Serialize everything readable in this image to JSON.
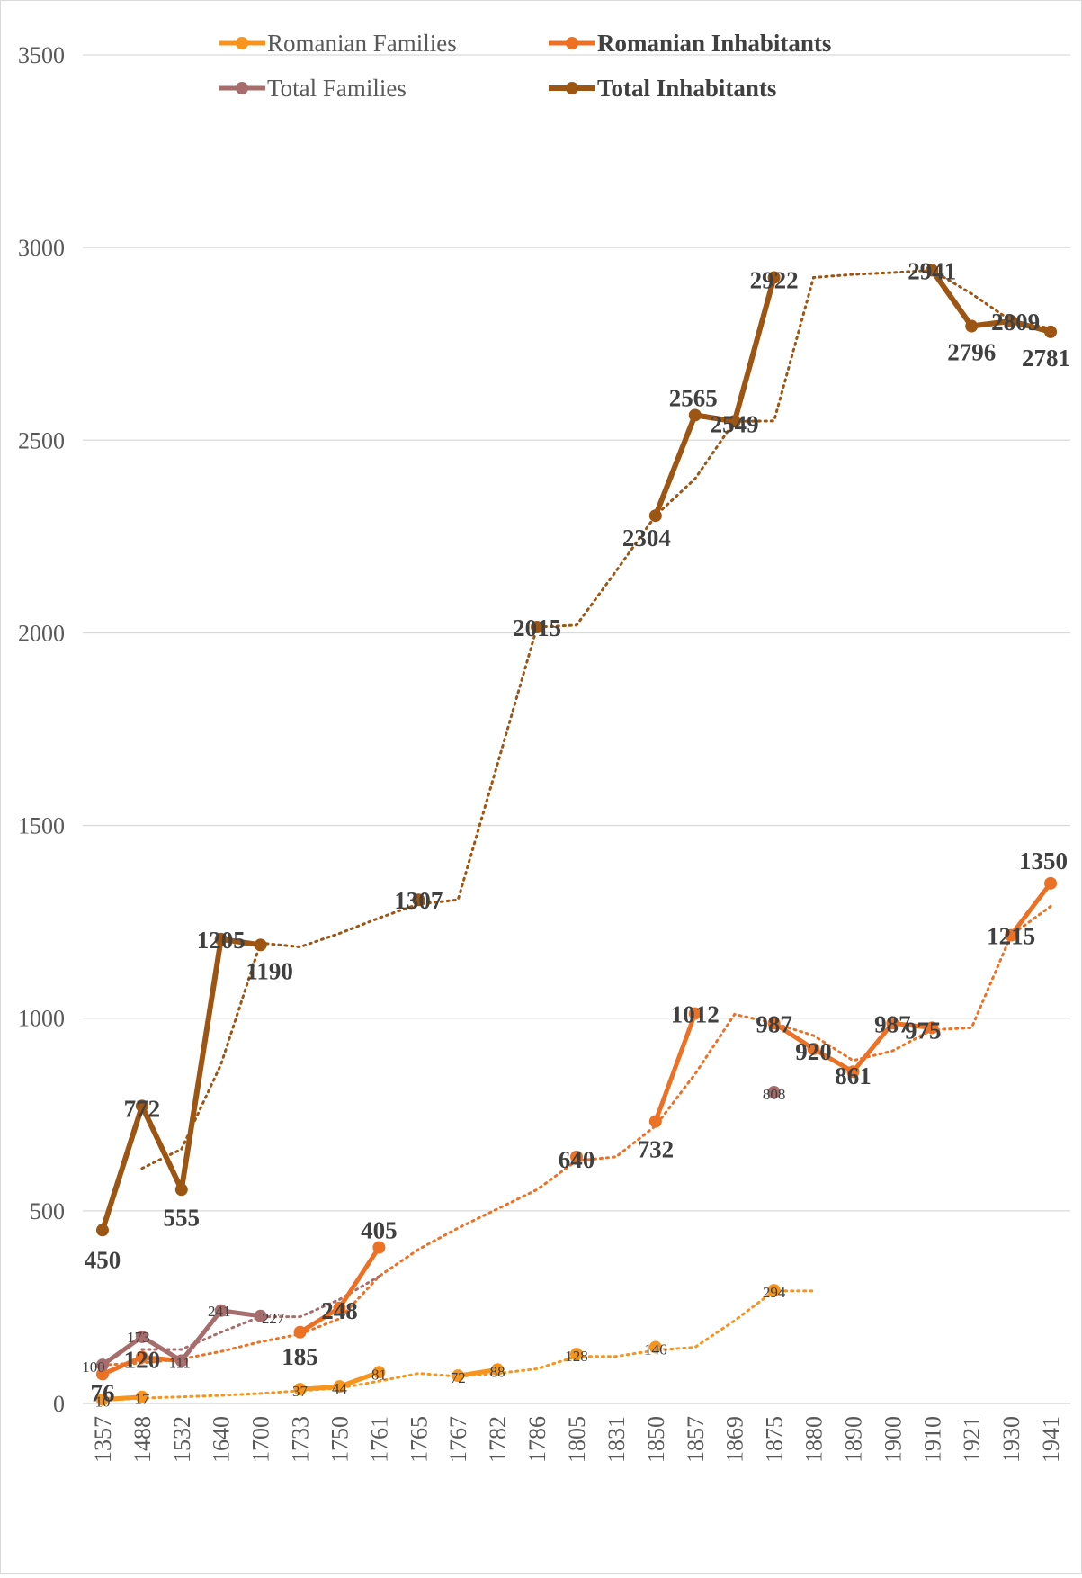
{
  "chart_data": {
    "type": "line",
    "title": "",
    "xlabel": "",
    "ylabel": "",
    "ylim": [
      0,
      3500
    ],
    "yticks": [
      0,
      500,
      1000,
      1500,
      2000,
      2500,
      3000,
      3500
    ],
    "grid": "horizontal",
    "legend_position": "top",
    "categories": [
      "1357",
      "1488",
      "1532",
      "1640",
      "1700",
      "1733",
      "1750",
      "1761",
      "1765",
      "1767",
      "1782",
      "1786",
      "1805",
      "1831",
      "1850",
      "1857",
      "1869",
      "1875",
      "1880",
      "1890",
      "1900",
      "1910",
      "1921",
      "1930",
      "1941"
    ],
    "series": [
      {
        "name": "Romanian Families",
        "color": "#f7941d",
        "line_width": 5,
        "label_style": "small",
        "legend_bold": false,
        "values": [
          10,
          17,
          null,
          null,
          null,
          37,
          44,
          81,
          null,
          72,
          88,
          null,
          128,
          null,
          146,
          null,
          null,
          294,
          null,
          null,
          null,
          null,
          null,
          null,
          null
        ],
        "labels": [
          "10",
          "17",
          null,
          null,
          null,
          "37",
          "44",
          "81",
          null,
          "72",
          "88",
          null,
          "128",
          null,
          "146",
          null,
          null,
          "294",
          null,
          null,
          null,
          null,
          null,
          null,
          null
        ],
        "trend": [
          8,
          14,
          17,
          21,
          26,
          33,
          40,
          58,
          78,
          70,
          78,
          90,
          122,
          122,
          138,
          146,
          215,
          292,
          292,
          null,
          null,
          null,
          null,
          null,
          null
        ]
      },
      {
        "name": "Romanian Inhabitants",
        "color": "#ed7125",
        "line_width": 5,
        "label_style": "big",
        "legend_bold": true,
        "values": [
          76,
          120,
          111,
          null,
          null,
          185,
          248,
          405,
          null,
          null,
          null,
          null,
          640,
          null,
          732,
          1012,
          null,
          987,
          920,
          861,
          987,
          975,
          null,
          1215,
          1350
        ],
        "labels": [
          "76",
          "120",
          null,
          null,
          null,
          "185",
          "248",
          "405",
          null,
          null,
          null,
          null,
          "640",
          null,
          "732",
          "1012",
          null,
          "987",
          "920",
          "861",
          "987",
          "975",
          null,
          "1215",
          "1350"
        ],
        "trend": [
          100,
          105,
          115,
          135,
          160,
          180,
          220,
          330,
          400,
          455,
          505,
          555,
          630,
          640,
          720,
          855,
          1010,
          987,
          955,
          890,
          915,
          970,
          975,
          1215,
          1290
        ]
      },
      {
        "name": "Total Families",
        "color": "#a76d6d",
        "line_width": 5,
        "label_style": "small",
        "legend_bold": false,
        "values": [
          100,
          173,
          111,
          241,
          227,
          null,
          null,
          null,
          null,
          null,
          null,
          null,
          null,
          null,
          null,
          null,
          null,
          808,
          null,
          null,
          null,
          null,
          null,
          null,
          null
        ],
        "labels": [
          "100",
          "173",
          "111",
          "241",
          "227",
          null,
          null,
          null,
          null,
          null,
          null,
          null,
          null,
          null,
          null,
          null,
          null,
          "808",
          null,
          null,
          null,
          null,
          null,
          null,
          null
        ],
        "trend": [
          null,
          140,
          140,
          185,
          225,
          225,
          270,
          330,
          null,
          null,
          null,
          null,
          null,
          null,
          null,
          null,
          null,
          null,
          808,
          null,
          null,
          null,
          null,
          null,
          null
        ]
      },
      {
        "name": "Total Inhabitants",
        "color": "#9c5513",
        "line_width": 6,
        "label_style": "big",
        "legend_bold": true,
        "values": [
          450,
          772,
          555,
          1205,
          1190,
          null,
          null,
          null,
          1307,
          null,
          null,
          2015,
          null,
          null,
          2304,
          2565,
          2549,
          2922,
          null,
          null,
          null,
          2941,
          2796,
          2809,
          2781
        ],
        "labels": [
          "450",
          "772",
          "555",
          "1205",
          "1190",
          null,
          null,
          null,
          "1307",
          null,
          null,
          "2015",
          null,
          null,
          "2304",
          "2565",
          "2549",
          "2922",
          null,
          null,
          null,
          "2941",
          "2796",
          "2809",
          "2781"
        ],
        "trend": [
          null,
          610,
          660,
          880,
          1195,
          1185,
          1220,
          1260,
          1296,
          1307,
          1660,
          2015,
          2020,
          2160,
          2304,
          2400,
          2549,
          2550,
          2922,
          2930,
          2935,
          2941,
          2880,
          2810,
          2790
        ]
      }
    ]
  }
}
